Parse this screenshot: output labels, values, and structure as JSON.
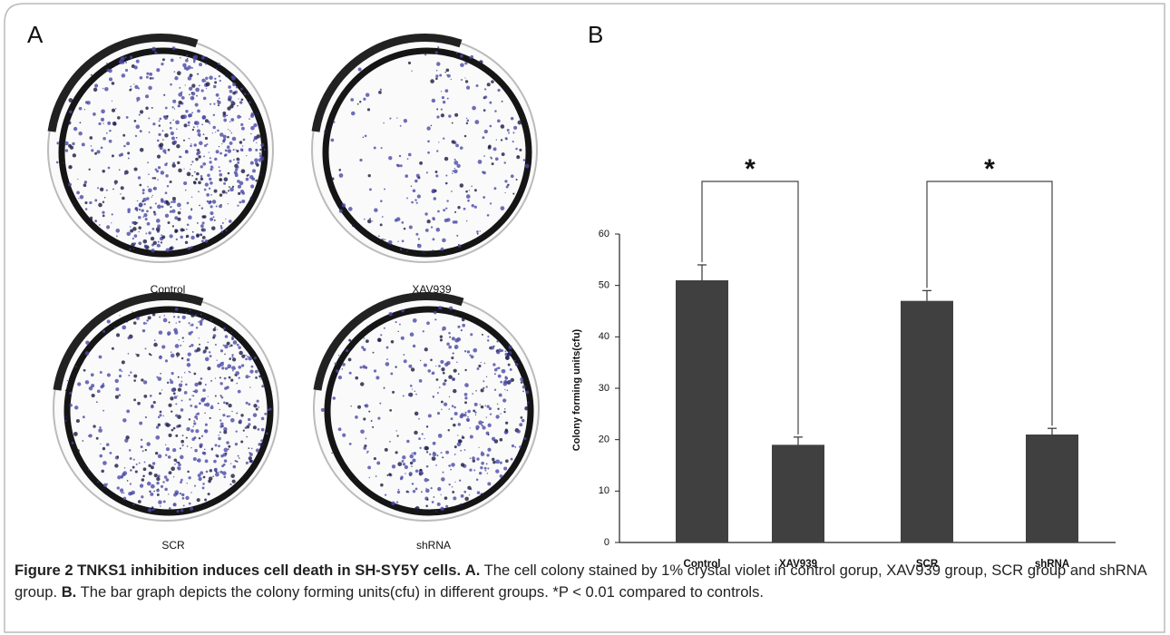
{
  "panel_a": {
    "label": "A",
    "dishes": [
      "Control",
      "XAV939",
      "SCR",
      "shRNA"
    ]
  },
  "chart_data": {
    "type": "bar",
    "panel_label": "B",
    "y_label": "Colony forming units(cfu)",
    "categories": [
      "Control",
      "XAV939",
      "SCR",
      "shRNA"
    ],
    "values": [
      51,
      19,
      47,
      21
    ],
    "errors": [
      3,
      1.5,
      2,
      1.2
    ],
    "color": "#404040",
    "ylim": [
      0,
      60
    ],
    "yticks": [
      0,
      10,
      20,
      30,
      40,
      50,
      60
    ],
    "annotations": [
      "*",
      "*"
    ]
  },
  "caption": {
    "title": "Figure 2 TNKS1 inhibition induces cell death in SH-SY5Y cells.",
    "part_a_label": "A.",
    "part_a": "The cell colony stained by 1% crystal violet in control gorup, XAV939 group, SCR group and shRNA group.",
    "part_b_label": "B.",
    "part_b": "The bar graph depicts the colony forming units(cfu) in different groups. *P < 0.01 compared to controls."
  }
}
